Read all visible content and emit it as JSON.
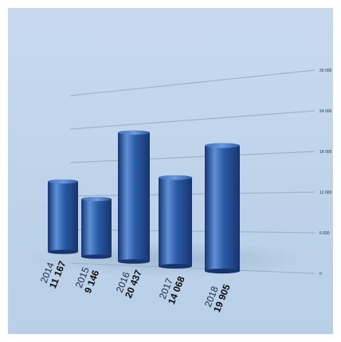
{
  "chart_data": {
    "type": "bar",
    "title": "",
    "xlabel": "",
    "ylabel": "",
    "categories": [
      "2014",
      "2015",
      "2016",
      "2017",
      "2018"
    ],
    "series": [
      {
        "values": [
          11167,
          9146,
          20437,
          14068,
          19905
        ],
        "labels": [
          "11 167",
          "9 146",
          "20 437",
          "14 068",
          "19 905"
        ]
      }
    ],
    "yticks": [
      "0",
      "6 000",
      "12 000",
      "18 000",
      "24 000",
      "30 000"
    ],
    "ylim": [
      0,
      30000
    ],
    "grid": true,
    "legend": "none",
    "colors": {
      "bar": "#2b5aa6",
      "bar_dark": "#16356e",
      "bar_light": "#5f8fd6",
      "background": "#c3d6ec",
      "gridline": "#9fb2c8"
    }
  }
}
